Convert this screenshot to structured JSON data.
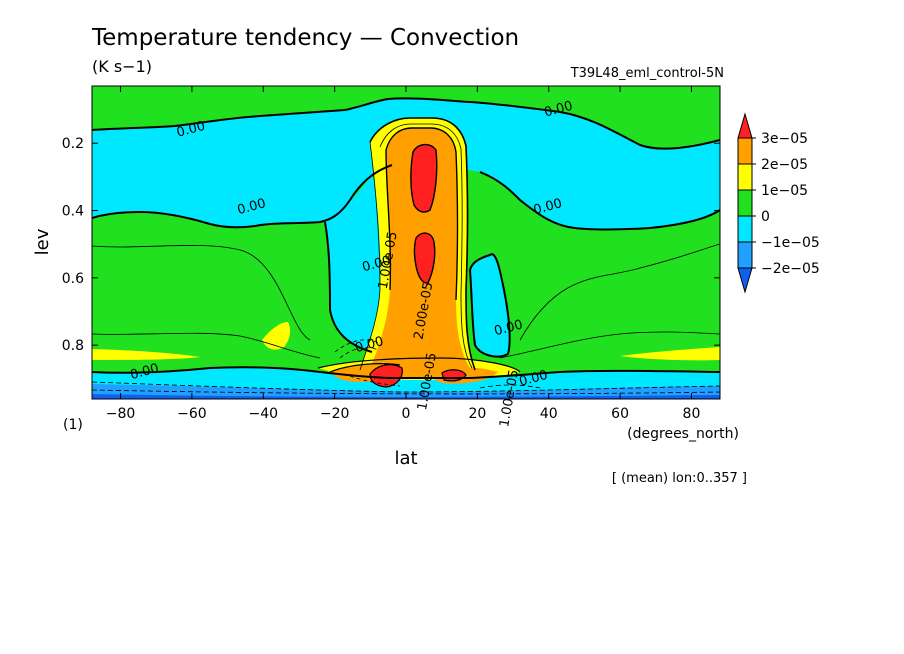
{
  "chart_data": {
    "type": "heatmap",
    "title": "Temperature tendency — Convection",
    "units": "(K s−1)",
    "run_label": "T39L48_eml_control-5N",
    "xlabel": "lat",
    "xunits": "(degrees_north)",
    "ylabel": "lev",
    "yunits": "(1)",
    "averaging_note": "[ (mean) lon:0..357 ]",
    "xlim": [
      -88,
      88
    ],
    "ylim": [
      0.96,
      0.03
    ],
    "x_ticks": [
      -80,
      -60,
      -40,
      -20,
      0,
      20,
      40,
      60,
      80
    ],
    "x_tick_labels": [
      "−80",
      "−60",
      "−40",
      "−20",
      "0",
      "20",
      "40",
      "60",
      "80"
    ],
    "y_ticks": [
      0.2,
      0.4,
      0.6,
      0.8
    ],
    "y_tick_labels": [
      "0.2",
      "0.4",
      "0.6",
      "0.8"
    ],
    "levels": [
      -2e-05,
      -1e-05,
      0,
      1e-05,
      2e-05,
      3e-05
    ],
    "colorbar": {
      "labels": [
        "3e−05",
        "2e−05",
        "1e−05",
        "0",
        "−1e−05",
        "−2e−05"
      ],
      "colors": [
        "#ff2020",
        "#ffa000",
        "#ffff00",
        "#20e020",
        "#00e8ff",
        "#20a0ff",
        "#1060f0"
      ]
    },
    "colors": {
      "lt_m2e5": "#1060f0",
      "m2e5_m1e5": "#20a0ff",
      "m1e5_0": "#00e8ff",
      "0_1e5": "#20e020",
      "1e5_2e5": "#ffff00",
      "2e5_3e5": "#ffa000",
      "gt_3e5": "#ff2020"
    },
    "contour_labels": [
      {
        "text": "0.00",
        "lat": -60,
        "lev": 0.17
      },
      {
        "text": "0.00",
        "lat": -43,
        "lev": 0.4
      },
      {
        "text": "0.00",
        "lat": -73,
        "lev": 0.89
      },
      {
        "text": "0.00",
        "lat": 43,
        "lev": 0.11
      },
      {
        "text": "0.00",
        "lat": 40,
        "lev": 0.4
      },
      {
        "text": "0.00",
        "lat": 29,
        "lev": 0.76
      },
      {
        "text": "0.00",
        "lat": 36,
        "lev": 0.91
      },
      {
        "text": "0.00",
        "lat": -8,
        "lev": 0.57
      },
      {
        "text": "1.00e-05",
        "lat": -4,
        "lev": 0.55
      },
      {
        "text": "2.00e-05",
        "lat": 6,
        "lev": 0.7
      },
      {
        "text": "1.00e-05",
        "lat": 7,
        "lev": 0.91
      },
      {
        "text": "1.00e-05",
        "lat": 30,
        "lev": 0.96
      },
      {
        "text": "0.00",
        "lat": -10,
        "lev": 0.81
      }
    ]
  }
}
